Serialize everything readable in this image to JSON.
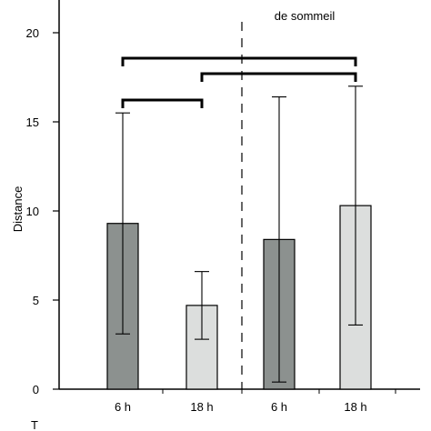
{
  "chart_data": {
    "type": "bar",
    "categories": [
      "6 h",
      "18 h",
      "6 h",
      "18 h"
    ],
    "values": [
      9.3,
      4.7,
      8.4,
      10.3
    ],
    "error_low": [
      3.1,
      2.8,
      0.4,
      3.6
    ],
    "error_high": [
      15.5,
      6.6,
      16.4,
      17.0
    ],
    "bar_colors": [
      "#8c918f",
      "#dcdedd",
      "#8c918f",
      "#dcdedd"
    ],
    "ylabel": "Distance",
    "xlabel": "",
    "ylim": [
      0,
      20
    ],
    "yticks": [
      0,
      5,
      10,
      15,
      20
    ],
    "group_labels": [
      {
        "lines": [
          ""
        ],
        "partially_visible": true
      },
      {
        "lines": [
          "",
          "de sommeil"
        ],
        "partially_visible": true
      }
    ],
    "significance_brackets": [
      {
        "from": 0,
        "to": 3
      },
      {
        "from": 1,
        "to": 3
      },
      {
        "from": 0,
        "to": 1
      }
    ],
    "separator": "dashed vertical line between groups",
    "footer_mark": "T"
  }
}
